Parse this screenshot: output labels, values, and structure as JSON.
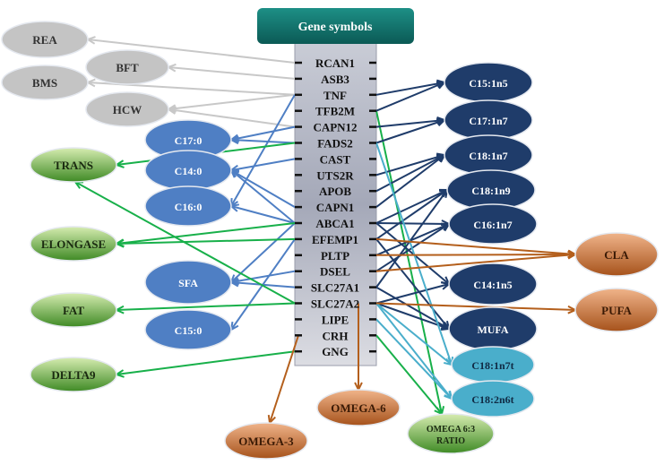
{
  "header": {
    "title": "Gene symbols"
  },
  "genes": [
    "RCAN1",
    "ASB3",
    "TNF",
    "TFB2M",
    "CAPN12",
    "FADS2",
    "CAST",
    "UTS2R",
    "APOB",
    "CAPN1",
    "ABCA1",
    "EFEMP1",
    "PLTP",
    "DSEL",
    "SLC27A1",
    "SLC27A2",
    "LIPE",
    "CRH",
    "GNG"
  ],
  "colors": {
    "gray": "#c8c8c8",
    "blue": "#4f7fc4",
    "green": "#18b04a",
    "navy": "#1f3c6a",
    "light_blue": "#4aaecb",
    "orange": "#b45f1c"
  },
  "traits": [
    {
      "id": "REA",
      "label": "REA",
      "group": "gray"
    },
    {
      "id": "BFT",
      "label": "BFT",
      "group": "gray"
    },
    {
      "id": "BMS",
      "label": "BMS",
      "group": "gray"
    },
    {
      "id": "HCW",
      "label": "HCW",
      "group": "gray"
    },
    {
      "id": "C17:0",
      "label": "C17:0",
      "group": "blue"
    },
    {
      "id": "C14:0",
      "label": "C14:0",
      "group": "blue"
    },
    {
      "id": "C16:0",
      "label": "C16:0",
      "group": "blue"
    },
    {
      "id": "SFA",
      "label": "SFA",
      "group": "blue"
    },
    {
      "id": "C15:0",
      "label": "C15:0",
      "group": "blue"
    },
    {
      "id": "TRANS",
      "label": "TRANS",
      "group": "green"
    },
    {
      "id": "ELONGASE",
      "label": "ELONGASE",
      "group": "green"
    },
    {
      "id": "FAT",
      "label": "FAT",
      "group": "green"
    },
    {
      "id": "DELTA9",
      "label": "DELTA9",
      "group": "green"
    },
    {
      "id": "C15:1n5",
      "label": "C15:1n5",
      "group": "navy"
    },
    {
      "id": "C17:1n7",
      "label": "C17:1n7",
      "group": "navy"
    },
    {
      "id": "C18:1n7",
      "label": "C18:1n7",
      "group": "navy"
    },
    {
      "id": "C18:1n9",
      "label": "C18:1n9",
      "group": "navy"
    },
    {
      "id": "C16:1n7",
      "label": "C16:1n7",
      "group": "navy"
    },
    {
      "id": "C14:1n5",
      "label": "C14:1n5",
      "group": "navy"
    },
    {
      "id": "MUFA",
      "label": "MUFA",
      "group": "navy"
    },
    {
      "id": "C18:1n7t",
      "label": "C18:1n7t",
      "group": "light_blue"
    },
    {
      "id": "C18:2n6t",
      "label": "C18:2n6t",
      "group": "light_blue"
    },
    {
      "id": "CLA",
      "label": "CLA",
      "group": "orange"
    },
    {
      "id": "PUFA",
      "label": "PUFA",
      "group": "orange"
    },
    {
      "id": "OMEGA-6",
      "label": "OMEGA-6",
      "group": "orange"
    },
    {
      "id": "OMEGA-3",
      "label": "OMEGA-3",
      "group": "orange"
    },
    {
      "id": "RATIO",
      "label": "OMEGA 6:3 RATIO",
      "group": "green"
    }
  ],
  "edges": [
    [
      "RCAN1",
      "REA",
      "gray"
    ],
    [
      "ASB3",
      "BFT",
      "gray"
    ],
    [
      "TNF",
      "BMS",
      "gray"
    ],
    [
      "TNF",
      "HCW",
      "gray"
    ],
    [
      "CAPN12",
      "HCW",
      "gray"
    ],
    [
      "CAPN12",
      "C17:0",
      "blue"
    ],
    [
      "FADS2",
      "C17:0",
      "blue"
    ],
    [
      "CAST",
      "C14:0",
      "blue"
    ],
    [
      "TNF",
      "C16:0",
      "blue"
    ],
    [
      "ABCA1",
      "C16:0",
      "blue"
    ],
    [
      "CAPN1",
      "C14:0",
      "blue"
    ],
    [
      "ABCA1",
      "C14:0",
      "blue"
    ],
    [
      "DSEL",
      "SFA",
      "blue"
    ],
    [
      "SLC27A1",
      "SFA",
      "blue"
    ],
    [
      "ABCA1",
      "SFA",
      "blue"
    ],
    [
      "EFEMP1",
      "C15:0",
      "blue"
    ],
    [
      "FADS2",
      "TRANS",
      "green"
    ],
    [
      "SLC27A2",
      "TRANS",
      "green"
    ],
    [
      "ABCA1",
      "ELONGASE",
      "green"
    ],
    [
      "EFEMP1",
      "ELONGASE",
      "green"
    ],
    [
      "SLC27A2",
      "FAT",
      "green"
    ],
    [
      "GNG",
      "DELTA9",
      "green"
    ],
    [
      "TFB2M",
      "RATIO",
      "green"
    ],
    [
      "CRH",
      "RATIO",
      "green"
    ],
    [
      "TNF",
      "C15:1n5",
      "navy"
    ],
    [
      "TFB2M",
      "C15:1n5",
      "navy"
    ],
    [
      "CAPN12",
      "C17:1n7",
      "navy"
    ],
    [
      "FADS2",
      "C17:1n7",
      "navy"
    ],
    [
      "UTS2R",
      "C18:1n7",
      "navy"
    ],
    [
      "APOB",
      "C18:1n7",
      "navy"
    ],
    [
      "CAPN1",
      "C18:1n7",
      "navy"
    ],
    [
      "ABCA1",
      "C18:1n9",
      "navy"
    ],
    [
      "EFEMP1",
      "C18:1n9",
      "navy"
    ],
    [
      "SLC27A1",
      "C18:1n9",
      "navy"
    ],
    [
      "ABCA1",
      "C16:1n7",
      "navy"
    ],
    [
      "PLTP",
      "C16:1n7",
      "navy"
    ],
    [
      "DSEL",
      "C16:1n7",
      "navy"
    ],
    [
      "ABCA1",
      "C14:1n5",
      "navy"
    ],
    [
      "SLC27A2",
      "C14:1n5",
      "navy"
    ],
    [
      "EFEMP1",
      "MUFA",
      "navy"
    ],
    [
      "SLC27A1",
      "MUFA",
      "navy"
    ],
    [
      "SLC27A2",
      "MUFA",
      "navy"
    ],
    [
      "FADS2",
      "C18:1n7t",
      "light_blue"
    ],
    [
      "SLC27A2",
      "C18:1n7t",
      "light_blue"
    ],
    [
      "LIPE",
      "C18:2n6t",
      "light_blue"
    ],
    [
      "SLC27A2",
      "C18:2n6t",
      "light_blue"
    ],
    [
      "EFEMP1",
      "CLA",
      "orange"
    ],
    [
      "PLTP",
      "CLA",
      "orange"
    ],
    [
      "DSEL",
      "CLA",
      "orange"
    ],
    [
      "SLC27A2",
      "PUFA",
      "orange"
    ],
    [
      "SLC27A2",
      "OMEGA-6",
      "orange"
    ],
    [
      "CRH",
      "OMEGA-3",
      "orange"
    ]
  ]
}
